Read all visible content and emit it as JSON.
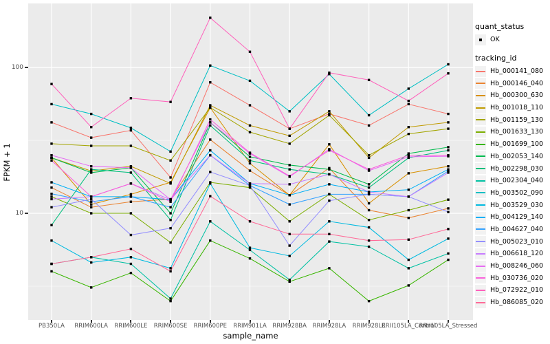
{
  "chart_data": {
    "type": "line",
    "title": "",
    "xlabel": "sample_name",
    "ylabel": "FPKM + 1",
    "y_scale": "log10",
    "y_ticks": [
      100,
      10
    ],
    "y_minor_ticks": [
      31.62,
      3.162
    ],
    "ylim": [
      1.86,
      267
    ],
    "grid": "on",
    "legend_position": "right",
    "marker": {
      "shape": "small-black-square",
      "color": "#000000"
    },
    "categories": [
      "PB350LA",
      "RRIM600LA",
      "RRIM600LE",
      "RRIM600SE",
      "RRIM600PE",
      "RRIM901LA",
      "RRIM928BA",
      "RRIM928LA",
      "RRIM928LE",
      "RRII105LA_Control",
      "RRII105LA_Stressed"
    ],
    "series": [
      {
        "name": "Hb_000141_080",
        "color": "#F8766D",
        "values": [
          42,
          33,
          37,
          17.6,
          79,
          55,
          38,
          48,
          40,
          56,
          48
        ]
      },
      {
        "name": "Hb_000146_040",
        "color": "#EA8331",
        "values": [
          15,
          11,
          12,
          12.5,
          32,
          19.6,
          13.3,
          20.4,
          10.5,
          9.3,
          10.8
        ]
      },
      {
        "name": "Hb_000300_630",
        "color": "#D89000",
        "values": [
          24,
          11.5,
          13.5,
          16.3,
          53,
          22,
          13.3,
          29.7,
          11.7,
          18.8,
          21
        ]
      },
      {
        "name": "Hb_001018_110",
        "color": "#C09B00",
        "values": [
          24,
          19.5,
          21,
          16,
          55,
          40,
          34,
          50,
          24,
          39,
          42
        ]
      },
      {
        "name": "Hb_001159_130",
        "color": "#A3A500",
        "values": [
          30,
          29,
          29,
          23,
          53,
          36,
          30,
          47,
          25,
          35,
          38
        ]
      },
      {
        "name": "Hb_001633_130",
        "color": "#7CAE00",
        "values": [
          13,
          10,
          10,
          6.3,
          16.3,
          15,
          8.8,
          13.5,
          9,
          10.5,
          12.4
        ]
      },
      {
        "name": "Hb_001699_100",
        "color": "#39B600",
        "values": [
          4.0,
          3.1,
          3.9,
          2.5,
          6.5,
          4.9,
          3.4,
          4.2,
          2.5,
          3.2,
          4.8
        ]
      },
      {
        "name": "Hb_002053_140",
        "color": "#00BB4E",
        "values": [
          24,
          19,
          20.5,
          10,
          42,
          24.4,
          21.4,
          20,
          15.8,
          25.7,
          28.4
        ]
      },
      {
        "name": "Hb_002298_030",
        "color": "#00BF7D",
        "values": [
          8.3,
          20,
          19,
          9,
          40,
          23,
          20,
          18.5,
          15,
          24,
          27
        ]
      },
      {
        "name": "Hb_002304_040",
        "color": "#00C1A3",
        "values": [
          4.5,
          5,
          4.5,
          2.6,
          8.8,
          5.6,
          3.5,
          6.4,
          5.9,
          4.2,
          5.3
        ]
      },
      {
        "name": "Hb_003502_090",
        "color": "#00BFC4",
        "values": [
          56,
          48,
          38.5,
          26.5,
          103,
          81,
          50,
          90,
          47,
          71.5,
          105
        ]
      },
      {
        "name": "Hb_003529_030",
        "color": "#00BAE0",
        "values": [
          6.5,
          4.6,
          5.0,
          4.2,
          16,
          5.8,
          5.1,
          8.8,
          8,
          4.8,
          6.7
        ]
      },
      {
        "name": "Hb_004129_140",
        "color": "#00B0F6",
        "values": [
          16.3,
          13,
          13,
          12.4,
          27,
          16,
          13.3,
          15.8,
          14,
          14.5,
          20
        ]
      },
      {
        "name": "Hb_004627_040",
        "color": "#35A2FF",
        "values": [
          13.6,
          12,
          13,
          11,
          25,
          15.5,
          11.5,
          13.5,
          13.5,
          13,
          19.5
        ]
      },
      {
        "name": "Hb_005023_010",
        "color": "#9590FF",
        "values": [
          11,
          12.5,
          7.1,
          7.9,
          19.2,
          15.5,
          6.0,
          12.2,
          13.5,
          13,
          10.2
        ]
      },
      {
        "name": "Hb_006618_120",
        "color": "#C77CFF",
        "values": [
          12.5,
          13,
          16,
          12.4,
          25,
          16,
          15.8,
          18.5,
          14,
          13,
          19
        ]
      },
      {
        "name": "Hb_008246_060",
        "color": "#E76BF3",
        "values": [
          25,
          21,
          20.5,
          12.4,
          42,
          25.7,
          17.8,
          27.5,
          19.6,
          24.4,
          24.6
        ]
      },
      {
        "name": "Hb_030736_020",
        "color": "#FA62DB",
        "values": [
          23,
          13,
          16,
          12,
          44,
          26,
          18,
          27,
          20,
          25,
          25
        ]
      },
      {
        "name": "Hb_072922_010",
        "color": "#FF62BC",
        "values": [
          77,
          39,
          61.5,
          58,
          219,
          128,
          38,
          92,
          82,
          59,
          91
        ]
      },
      {
        "name": "Hb_086085_020",
        "color": "#FF6A98",
        "values": [
          4.5,
          5,
          5.7,
          4.0,
          13.1,
          8.8,
          7.2,
          7.2,
          6.5,
          6.6,
          7.8
        ]
      }
    ]
  },
  "axes": {
    "x_title": "sample_name",
    "y_title": "FPKM + 1",
    "y_tick_labels": [
      "100",
      "10"
    ]
  },
  "legend": {
    "quant_status_title": "quant_status",
    "quant_status_items": [
      {
        "label": "OK"
      }
    ],
    "tracking_title": "tracking_id"
  },
  "colors": {
    "panel_bg": "#EBEBEB",
    "grid": "#FFFFFF",
    "tick_text": "#4D4D4D",
    "legend_key_bg": "#F2F2F2",
    "marker": "#000000"
  }
}
